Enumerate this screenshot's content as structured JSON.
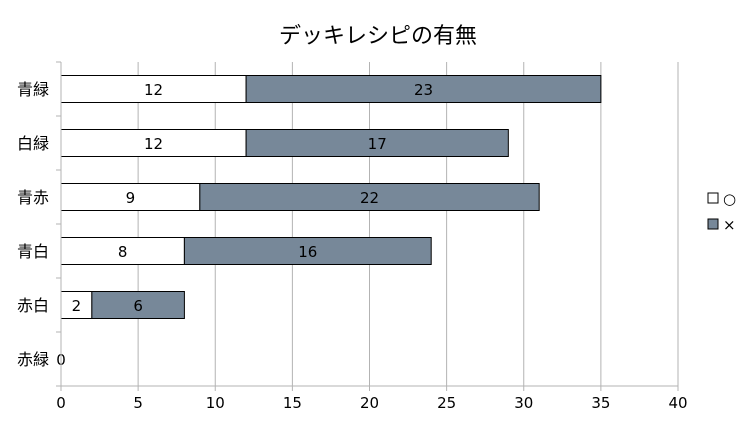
{
  "chart_data": {
    "type": "bar",
    "orientation": "horizontal",
    "stacked": true,
    "title": "デッキレシピの有無",
    "categories": [
      "青緑",
      "白緑",
      "青赤",
      "青白",
      "赤白",
      "赤緑"
    ],
    "series": [
      {
        "name": "○",
        "values": [
          12,
          12,
          9,
          8,
          2,
          0
        ],
        "color": "#ffffff"
      },
      {
        "name": "×",
        "values": [
          23,
          17,
          22,
          16,
          6,
          0
        ],
        "color": "#778899"
      }
    ],
    "xlim": [
      0,
      40
    ],
    "xticks": [
      0,
      5,
      10,
      15,
      20,
      25,
      30,
      35,
      40
    ],
    "grid": "vertical",
    "legend": "right"
  }
}
